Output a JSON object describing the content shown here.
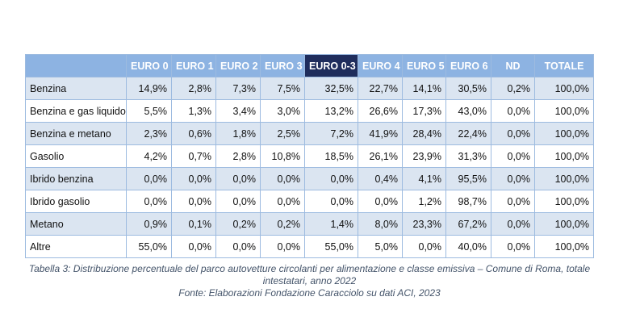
{
  "table": {
    "headers": [
      "EURO 0",
      "EURO 1",
      "EURO 2",
      "EURO 3",
      "EURO 0-3",
      "EURO 4",
      "EURO 5",
      "EURO 6",
      "ND",
      "TOTALE"
    ],
    "rows": [
      [
        "Benzina",
        "14,9%",
        "2,8%",
        "7,3%",
        "7,5%",
        "32,5%",
        "22,7%",
        "14,1%",
        "30,5%",
        "0,2%",
        "100,0%"
      ],
      [
        "Benzina e gas liquido",
        "5,5%",
        "1,3%",
        "3,4%",
        "3,0%",
        "13,2%",
        "26,6%",
        "17,3%",
        "43,0%",
        "0,0%",
        "100,0%"
      ],
      [
        "Benzina e metano",
        "2,3%",
        "0,6%",
        "1,8%",
        "2,5%",
        "7,2%",
        "41,9%",
        "28,4%",
        "22,4%",
        "0,0%",
        "100,0%"
      ],
      [
        "Gasolio",
        "4,2%",
        "0,7%",
        "2,8%",
        "10,8%",
        "18,5%",
        "26,1%",
        "23,9%",
        "31,3%",
        "0,0%",
        "100,0%"
      ],
      [
        "Ibrido benzina",
        "0,0%",
        "0,0%",
        "0,0%",
        "0,0%",
        "0,0%",
        "0,4%",
        "4,1%",
        "95,5%",
        "0,0%",
        "100,0%"
      ],
      [
        "Ibrido gasolio",
        "0,0%",
        "0,0%",
        "0,0%",
        "0,0%",
        "0,0%",
        "0,0%",
        "1,2%",
        "98,7%",
        "0,0%",
        "100,0%"
      ],
      [
        "Metano",
        "0,9%",
        "0,1%",
        "0,2%",
        "0,2%",
        "1,4%",
        "8,0%",
        "23,3%",
        "67,2%",
        "0,0%",
        "100,0%"
      ],
      [
        "Altre",
        "55,0%",
        "0,0%",
        "0,0%",
        "0,0%",
        "55,0%",
        "5,0%",
        "0,0%",
        "40,0%",
        "0,0%",
        "100,0%"
      ]
    ]
  },
  "caption": [
    "Tabella 3: Distribuzione percentuale del parco autovetture circolanti per alimentazione e classe emissiva – Comune di Roma, totale",
    "intestatari, anno 2022"
  ],
  "source": "Fonte: Elaborazioni Fondazione Caracciolo su dati ACI, 2023"
}
